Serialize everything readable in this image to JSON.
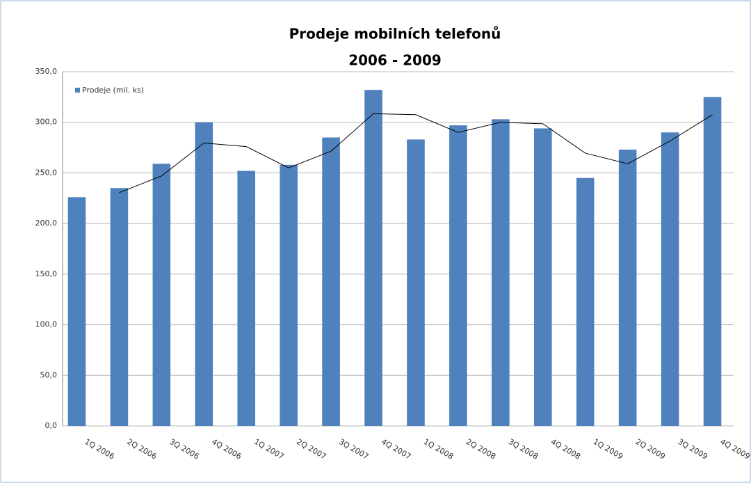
{
  "chart_data": {
    "type": "bar",
    "title": [
      "Prodeje mobilních telefonů",
      "2006 - 2009"
    ],
    "categories": [
      "1Q 2006",
      "2Q 2006",
      "3Q 2006",
      "4Q 2006",
      "1Q 2007",
      "2Q 2007",
      "3Q 2007",
      "4Q 2007",
      "1Q 2008",
      "2Q 2008",
      "3Q 2008",
      "4Q 2008",
      "1Q 2009",
      "2Q 2009",
      "3Q 2009",
      "4Q 2009"
    ],
    "series": [
      {
        "name": "Prodeje (mil. ks)",
        "color": "#4f81bd",
        "values": [
          226,
          235,
          259,
          300,
          252,
          258,
          285,
          332,
          283,
          297,
          303,
          294,
          245,
          273,
          290,
          325
        ]
      }
    ],
    "moving_average": {
      "color": "#000000",
      "values": [
        null,
        230.5,
        247,
        279.5,
        276,
        255,
        271.5,
        308.5,
        307.5,
        290,
        300,
        298.5,
        269.5,
        259,
        281.5,
        307.5
      ]
    },
    "ylim": [
      0,
      350
    ],
    "yticks": [
      {
        "value": 0,
        "label": "0,0"
      },
      {
        "value": 50,
        "label": "50,0"
      },
      {
        "value": 100,
        "label": "100,0"
      },
      {
        "value": 150,
        "label": "150,0"
      },
      {
        "value": 200,
        "label": "200,0"
      },
      {
        "value": 250,
        "label": "250,0"
      },
      {
        "value": 300,
        "label": "300,0"
      },
      {
        "value": 350,
        "label": "350,0"
      }
    ],
    "grid": true,
    "legend": "top-left"
  }
}
